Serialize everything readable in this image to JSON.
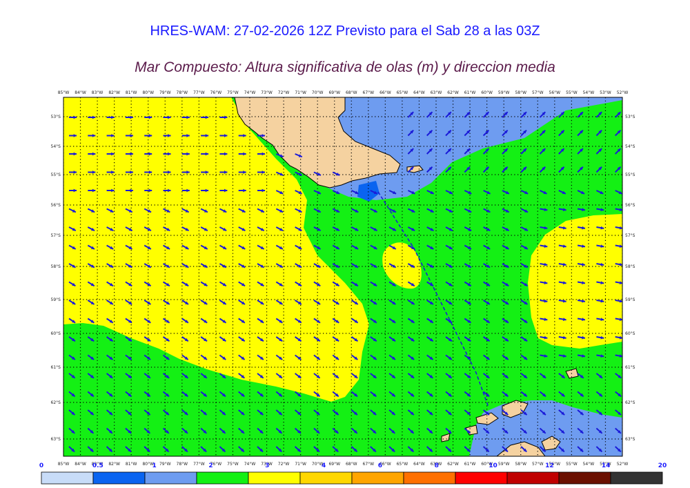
{
  "title": "HRES-WAM: 27-02-2026 12Z Previsto para el Sab 28 a las 03Z",
  "subtitle": "Mar Compuesto: Altura significativa de olas (m) y direccion media",
  "map": {
    "lon_labels": [
      "85°W",
      "84°W",
      "83°W",
      "82°W",
      "81°W",
      "80°W",
      "79°W",
      "78°W",
      "77°W",
      "76°W",
      "75°W",
      "74°W",
      "73°W",
      "72°W",
      "71°W",
      "70°W",
      "69°W",
      "68°W",
      "67°W",
      "66°W",
      "65°W",
      "64°W",
      "63°W",
      "62°W",
      "61°W",
      "60°W",
      "59°W",
      "58°W",
      "57°W",
      "56°W",
      "55°W",
      "54°W",
      "53°W",
      "52°W"
    ],
    "lat_labels": [
      "53°S",
      "54°S",
      "55°S",
      "56°S",
      "57°S",
      "58°S",
      "59°S",
      "60°S",
      "61°S",
      "62°S",
      "63°S"
    ],
    "colors": {
      "band_0_0.5": "#c8dcf8",
      "band_0.5_1": "#0a64f0",
      "band_1_2": "#6e9cf0",
      "band_2_3": "#14f014",
      "band_3_4": "#ffff00",
      "land": "#f5d2a0",
      "arrow": "#1a1ad8",
      "track": "#1a1ad8"
    }
  },
  "colorbar": {
    "ticks": [
      "0",
      "0.5",
      "1",
      "2",
      "3",
      "4",
      "6",
      "8",
      "10",
      "12",
      "14",
      "20"
    ],
    "colors": [
      "#c8dcf8",
      "#0a64f0",
      "#6e9cf0",
      "#14f014",
      "#ffff00",
      "#ffd700",
      "#ffa500",
      "#ff7000",
      "#ff0000",
      "#c00000",
      "#6b1000",
      "#333333"
    ]
  }
}
